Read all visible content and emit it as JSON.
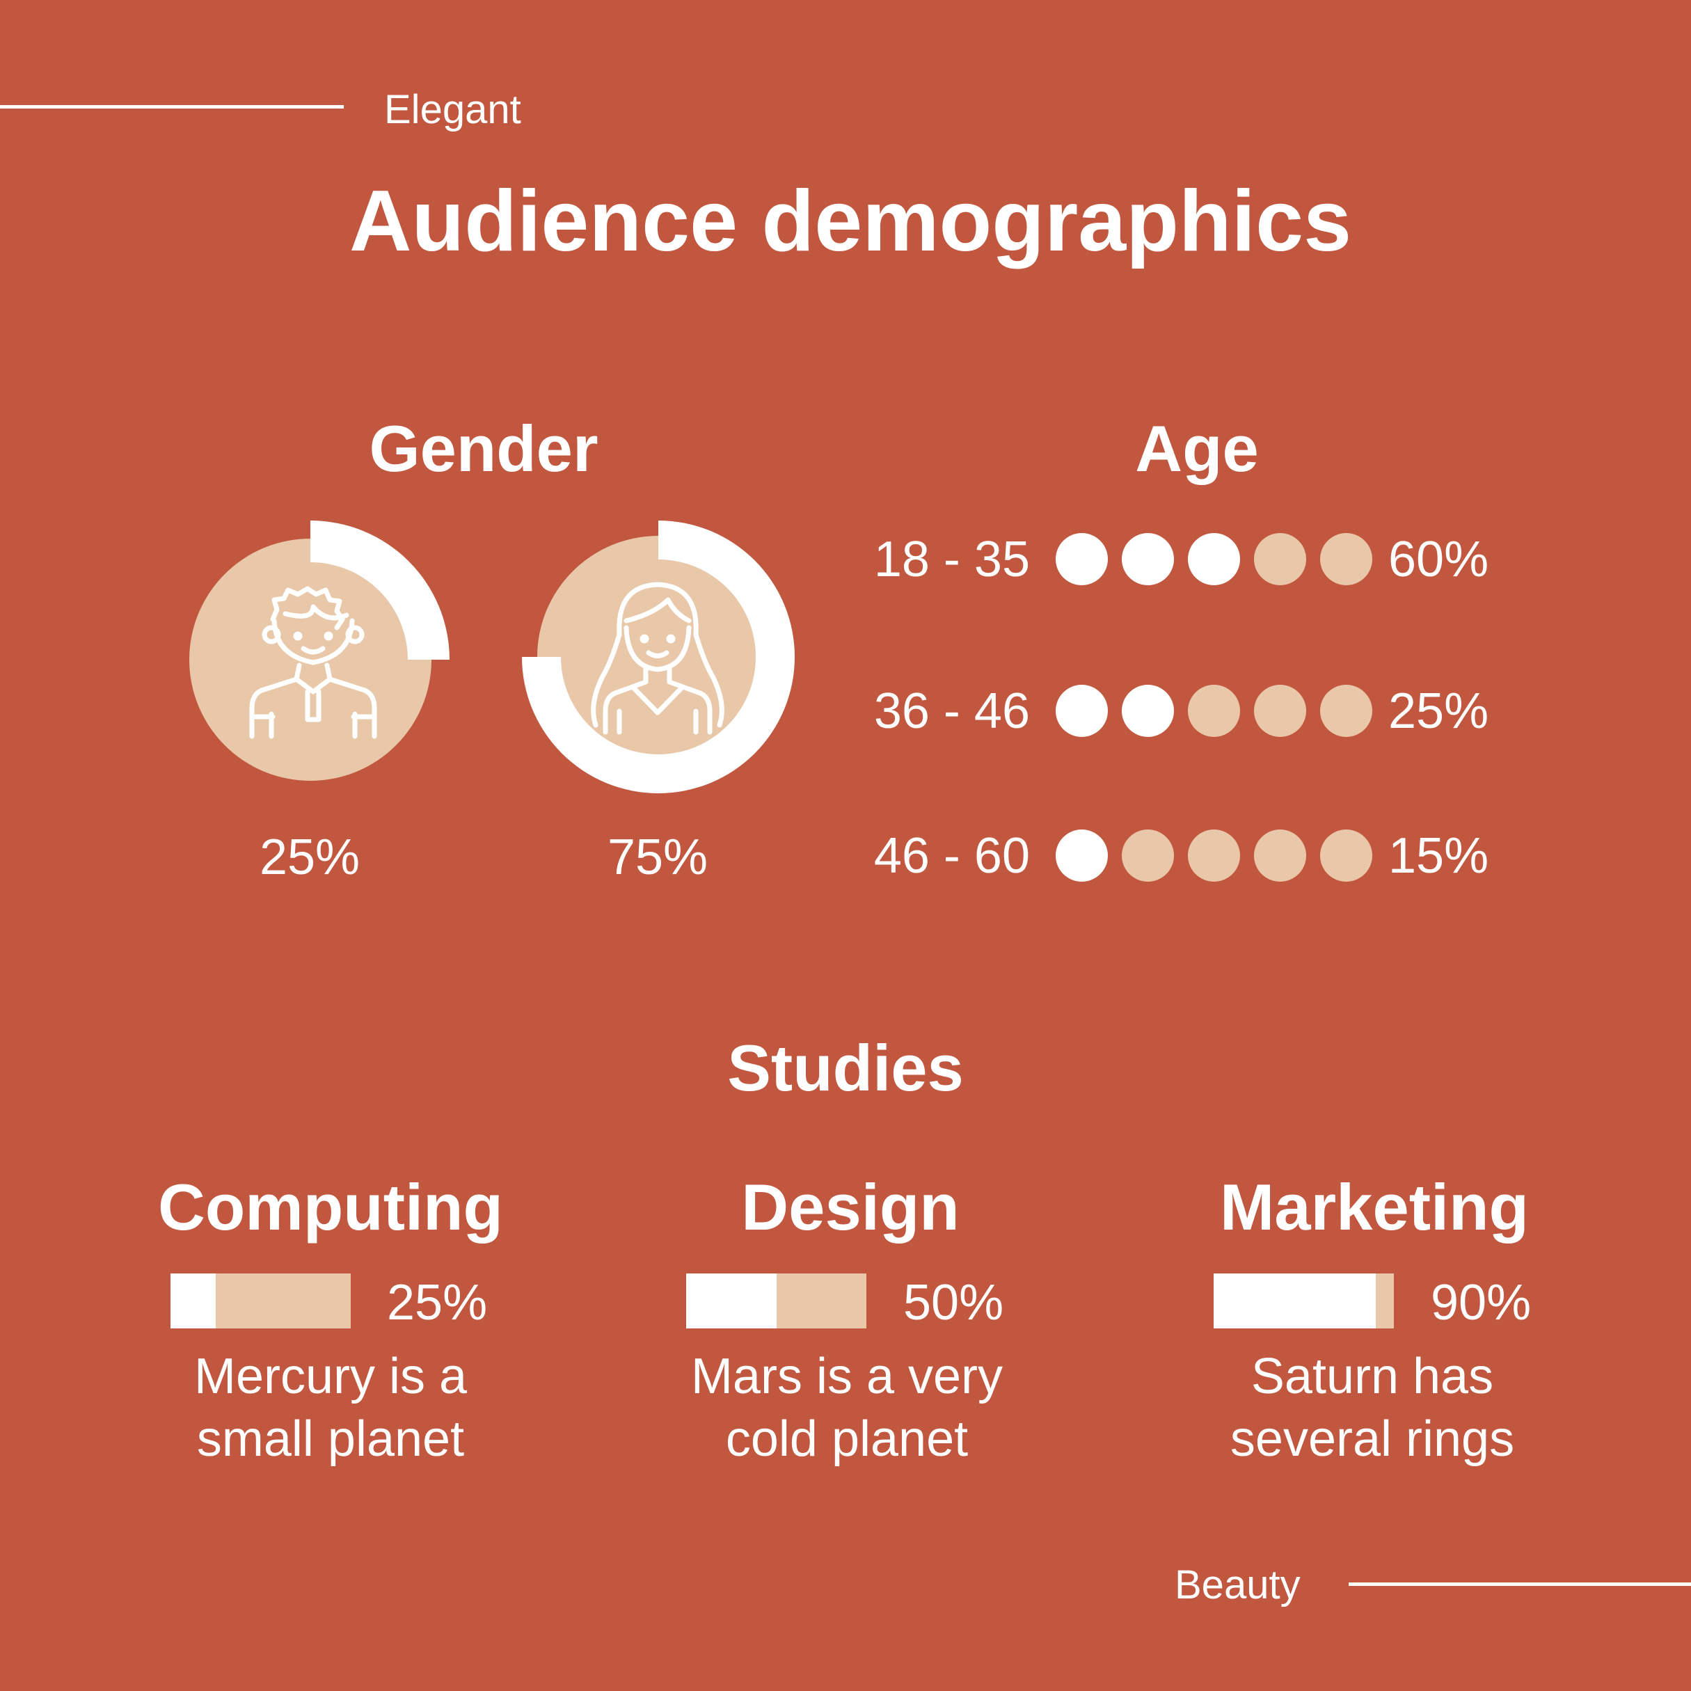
{
  "header": {
    "tag": "Elegant",
    "title": "Audience demographics"
  },
  "footer": {
    "tag": "Beauty"
  },
  "colors": {
    "background": "#c2573f",
    "accent": "#e8c8a8",
    "foreground": "#ffffff"
  },
  "gender": {
    "heading": "Gender",
    "items": [
      {
        "icon": "man-icon",
        "value": 25,
        "label": "25%"
      },
      {
        "icon": "woman-icon",
        "value": 75,
        "label": "75%"
      }
    ]
  },
  "age": {
    "heading": "Age",
    "rows": [
      {
        "range": "18 - 35",
        "filled_dots": 3,
        "total_dots": 5,
        "percent": "60%"
      },
      {
        "range": "36 - 46",
        "filled_dots": 2,
        "total_dots": 5,
        "percent": "25%"
      },
      {
        "range": "46 - 60",
        "filled_dots": 1,
        "total_dots": 5,
        "percent": "15%"
      }
    ]
  },
  "studies": {
    "heading": "Studies",
    "items": [
      {
        "name": "Computing",
        "value": 25,
        "percent": "25%",
        "desc_line1": "Mercury is a",
        "desc_line2": "small planet"
      },
      {
        "name": "Design",
        "value": 50,
        "percent": "50%",
        "desc_line1": "Mars is a very",
        "desc_line2": "cold planet"
      },
      {
        "name": "Marketing",
        "value": 90,
        "percent": "90%",
        "desc_line1": "Saturn has",
        "desc_line2": "several rings"
      }
    ]
  }
}
